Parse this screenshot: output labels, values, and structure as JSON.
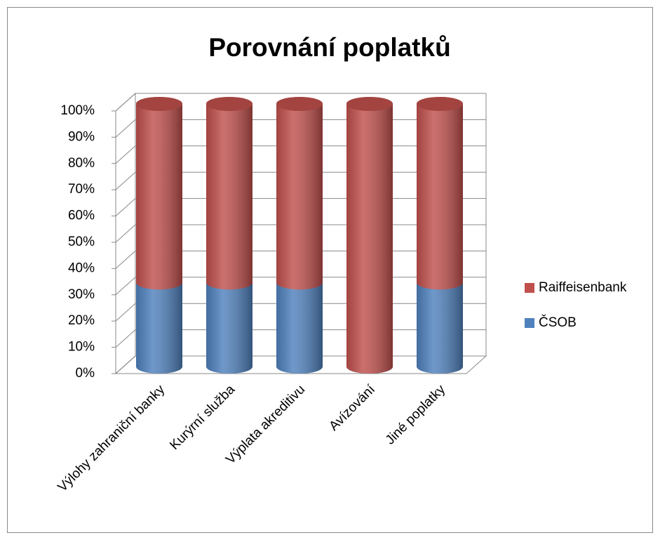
{
  "chart_data": {
    "type": "bar",
    "stacked": true,
    "title": "Porovnání poplatků",
    "categories": [
      "Výlohy zahraniční banky",
      "Kurýrní služba",
      "Výplata akreditivu",
      "Avízování",
      "Jiné poplatky"
    ],
    "series": [
      {
        "name": "ČSOB",
        "color": "#4f81bd",
        "values": [
          32,
          32,
          32,
          0,
          32
        ]
      },
      {
        "name": "Raiffeisenbank",
        "color": "#c0504d",
        "values": [
          68,
          68,
          68,
          100,
          68
        ]
      }
    ],
    "ylim": [
      0,
      100
    ],
    "yticks": [
      {
        "value": 0,
        "label": "0%"
      },
      {
        "value": 10,
        "label": "10%"
      },
      {
        "value": 20,
        "label": "20%"
      },
      {
        "value": 30,
        "label": "30%"
      },
      {
        "value": 40,
        "label": "40%"
      },
      {
        "value": 50,
        "label": "50%"
      },
      {
        "value": 60,
        "label": "60%"
      },
      {
        "value": 70,
        "label": "70%"
      },
      {
        "value": 80,
        "label": "80%"
      },
      {
        "value": 90,
        "label": "90%"
      },
      {
        "value": 100,
        "label": "100%"
      }
    ],
    "grid": true,
    "legend": "right"
  }
}
